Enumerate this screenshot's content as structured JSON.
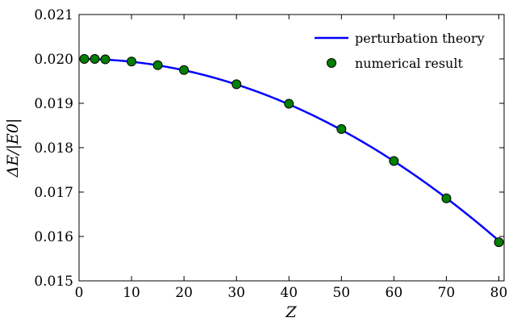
{
  "chart_data": {
    "type": "line",
    "xlabel": "Z",
    "ylabel": "ΔE/|E0|",
    "xlim": [
      0,
      81
    ],
    "ylim": [
      0.015,
      0.021
    ],
    "xticks": [
      0,
      10,
      20,
      30,
      40,
      50,
      60,
      70,
      80
    ],
    "yticks": [
      "0.015",
      "0.016",
      "0.017",
      "0.018",
      "0.019",
      "0.020",
      "0.021"
    ],
    "grid": false,
    "legend_position": "top-right",
    "series": [
      {
        "name": "perturbation theory",
        "kind": "line",
        "color": "#0000ff",
        "model": {
          "a": 0.02,
          "b": 6.4e-07
        },
        "x_range": [
          1,
          80
        ]
      },
      {
        "name": "numerical result",
        "kind": "scatter",
        "color": "#007f00",
        "x": [
          1,
          3,
          5,
          10,
          15,
          20,
          30,
          40,
          50,
          60,
          70,
          80
        ],
        "y": [
          0.02,
          0.02,
          0.01999,
          0.01994,
          0.01986,
          0.01975,
          0.01943,
          0.01899,
          0.01842,
          0.0177,
          0.01686,
          0.01587
        ]
      }
    ]
  }
}
